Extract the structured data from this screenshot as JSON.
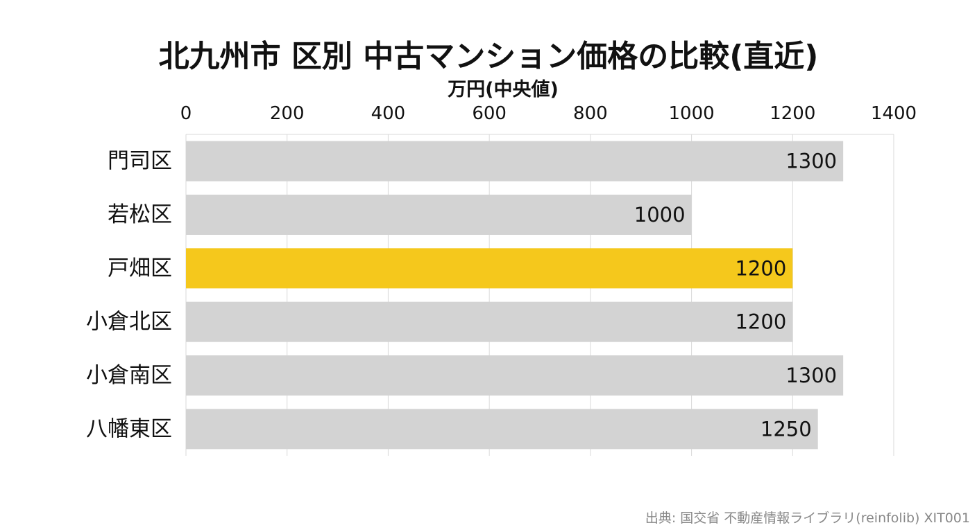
{
  "chart_data": {
    "type": "bar",
    "orientation": "horizontal",
    "title": "北九州市 区別 中古マンション価格の比較(直近)",
    "xlabel": "万円(中央値)",
    "ylabel": "",
    "axis_position": "top",
    "xlim": [
      0,
      1400
    ],
    "ticks": [
      "0",
      "200",
      "400",
      "600",
      "800",
      "1000",
      "1200",
      "1400"
    ],
    "grid": true,
    "legend": "none",
    "categories": [
      "門司区",
      "若松区",
      "戸畑区",
      "小倉北区",
      "小倉南区",
      "八幡東区"
    ],
    "values": [
      1300,
      1000,
      1200,
      1200,
      1300,
      1250
    ],
    "data_labels": [
      "1300",
      "1000",
      "1200",
      "1200",
      "1300",
      "1250"
    ],
    "highlight_category": "戸畑区",
    "colors": {
      "bar": "#d3d3d3",
      "highlight": "#f5c81c",
      "grid": "#d9d9d9"
    }
  },
  "source": "出典: 国交省 不動産情報ライブラリ(reinfolib) XIT001"
}
